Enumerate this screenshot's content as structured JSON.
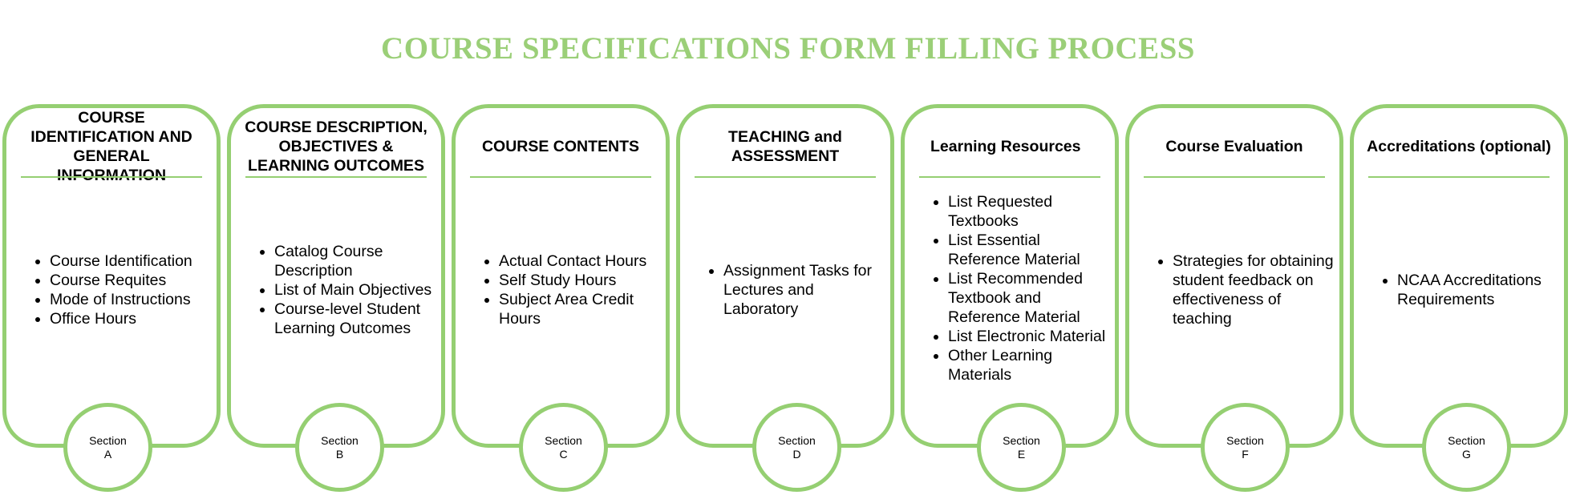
{
  "title": "COURSE SPECIFICATIONS FORM FILLING PROCESS",
  "sections": [
    {
      "heading": "COURSE IDENTIFICATION AND GENERAL INFORMATION",
      "items": [
        "Course Identification",
        "Course Requites",
        "Mode of Instructions",
        "Office Hours"
      ],
      "badge_label": "Section",
      "badge_letter": "A"
    },
    {
      "heading": "COURSE DESCRIPTION, OBJECTIVES & LEARNING OUTCOMES",
      "items": [
        "Catalog Course Description",
        "List of Main Objectives",
        "Course-level Student Learning Outcomes"
      ],
      "badge_label": "Section",
      "badge_letter": "B"
    },
    {
      "heading": "COURSE CONTENTS",
      "items": [
        "Actual Contact Hours",
        "Self Study Hours",
        "Subject Area Credit Hours"
      ],
      "badge_label": "Section",
      "badge_letter": "C"
    },
    {
      "heading": "TEACHING and ASSESSMENT",
      "items": [
        "Assignment Tasks for Lectures and Laboratory"
      ],
      "badge_label": "Section",
      "badge_letter": "D"
    },
    {
      "heading": "Learning Resources",
      "items": [
        "List Requested Textbooks",
        "List Essential Reference Material",
        "List Recommended Textbook and Reference Material",
        "List Electronic Material",
        "Other Learning Materials"
      ],
      "badge_label": "Section",
      "badge_letter": "E"
    },
    {
      "heading": "Course Evaluation",
      "items": [
        "Strategies for obtaining student feedback on effectiveness of teaching"
      ],
      "badge_label": "Section",
      "badge_letter": "F"
    },
    {
      "heading": "Accreditations (optional)",
      "items": [
        "NCAA Accreditations Requirements"
      ],
      "badge_label": "Section",
      "badge_letter": "G"
    }
  ]
}
